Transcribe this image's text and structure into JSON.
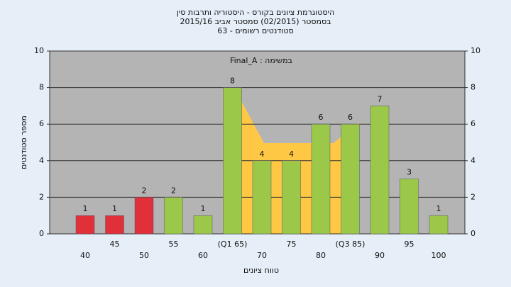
{
  "chart_data": {
    "type": "bar",
    "title": "היסטוגרמת ציונים בקורס - היסטוריה ותרבות סין",
    "subtitle": "בסמסטר  (02/2015)  סמסטר אביב 2015/16",
    "subtitle2": "סטודנטים רשומים - 63",
    "annotation": "במשימה : Final_A",
    "y_label": "מספר סטודנטים",
    "x_label": "טווח ציונים",
    "categories": [
      "40",
      "45",
      "50",
      "55",
      "60",
      "(Q1 65)",
      "70",
      "75",
      "80",
      "(Q3 85)",
      "90",
      "95",
      "100"
    ],
    "series": [
      {
        "values": [
          1,
          1,
          2,
          2,
          1,
          8,
          4,
          4,
          6,
          6,
          7,
          3,
          1
        ],
        "colors": [
          "#e0303a",
          "#e0303a",
          "#e0303a",
          "#9cc84a",
          "#9cc84a",
          "#9cc84a",
          "#9cc84a",
          "#9cc84a",
          "#9cc84a",
          "#9cc84a",
          "#9cc84a",
          "#9cc84a",
          "#9cc84a"
        ]
      }
    ],
    "ylim": [
      0,
      10
    ],
    "yticks": [
      0,
      2,
      4,
      6,
      8,
      10
    ],
    "grid": true
  }
}
